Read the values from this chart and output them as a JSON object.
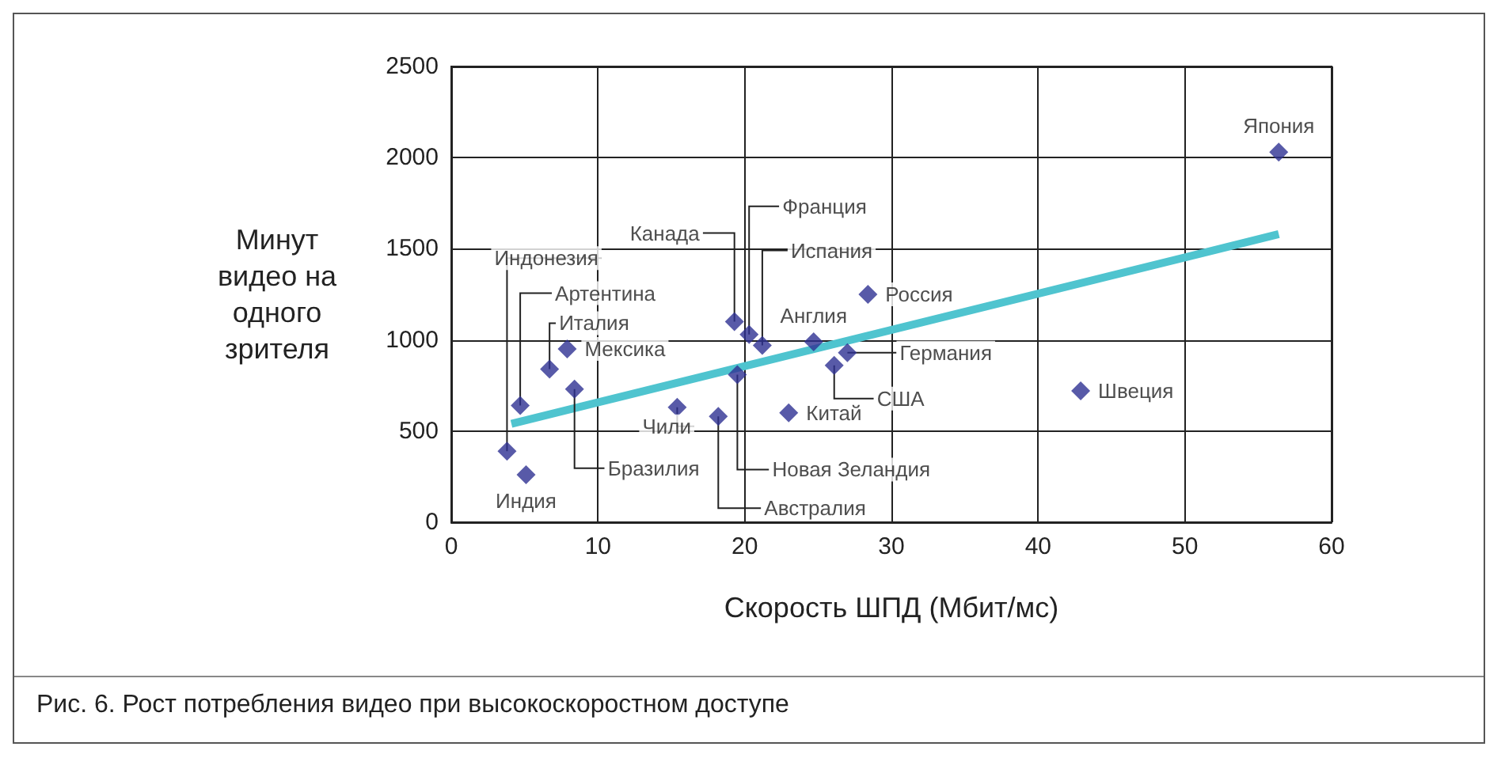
{
  "chart_data": {
    "type": "scatter",
    "xlabel": "Скорость ШПД (Мбит/мс)",
    "ylabel": "Минут\nвидео на\nодного\nзрителя",
    "xlim": [
      0,
      60
    ],
    "xticks": [
      0,
      10,
      20,
      30,
      40,
      50,
      60
    ],
    "ylim": [
      0,
      2500
    ],
    "yticks": [
      0,
      500,
      1000,
      1500,
      2000,
      2500
    ],
    "grid": true,
    "series": [
      {
        "marker": "diamond",
        "color": "#2e3192",
        "x": [
          3.8,
          5.1,
          4.7,
          6.7,
          7.9,
          8.4,
          15.4,
          18.2,
          19.5,
          19.3,
          20.3,
          21.2,
          23.0,
          24.7,
          26.1,
          27.0,
          28.4,
          42.9,
          56.4
        ],
        "values": [
          390,
          260,
          640,
          840,
          950,
          730,
          630,
          580,
          810,
          1100,
          1030,
          970,
          600,
          990,
          860,
          930,
          1250,
          720,
          2030
        ]
      },
      {
        "type": "line",
        "color": "#4fc4cf",
        "x": [
          4.1,
          56.4
        ],
        "values": [
          540,
          1580
        ]
      }
    ],
    "annotations": [
      {
        "text": "Индонезия",
        "x": 3.8,
        "y": 390
      },
      {
        "text": "Индия",
        "x": 5.1,
        "y": 260
      },
      {
        "text": "Артентина",
        "x": 4.7,
        "y": 640
      },
      {
        "text": "Италия",
        "x": 6.7,
        "y": 840
      },
      {
        "text": "Мексика",
        "x": 7.9,
        "y": 950
      },
      {
        "text": "Бразилия",
        "x": 8.4,
        "y": 730
      },
      {
        "text": "Чили",
        "x": 15.4,
        "y": 630
      },
      {
        "text": "Австралия",
        "x": 18.2,
        "y": 580
      },
      {
        "text": "Новая Зеландия",
        "x": 19.5,
        "y": 810
      },
      {
        "text": "Канада",
        "x": 19.3,
        "y": 1100
      },
      {
        "text": "Франция",
        "x": 20.3,
        "y": 1030
      },
      {
        "text": "Испания",
        "x": 21.2,
        "y": 970
      },
      {
        "text": "Китай",
        "x": 23.0,
        "y": 600
      },
      {
        "text": "Англия",
        "x": 24.7,
        "y": 990
      },
      {
        "text": "США",
        "x": 26.1,
        "y": 860
      },
      {
        "text": "Германия",
        "x": 27.0,
        "y": 930
      },
      {
        "text": "Россия",
        "x": 28.4,
        "y": 1250
      },
      {
        "text": "Швеция",
        "x": 42.9,
        "y": 720
      },
      {
        "text": "Япония",
        "x": 56.4,
        "y": 2030
      },
      "Рис. 6. Рост потребления видео при высокоскоростном доступе"
    ]
  }
}
